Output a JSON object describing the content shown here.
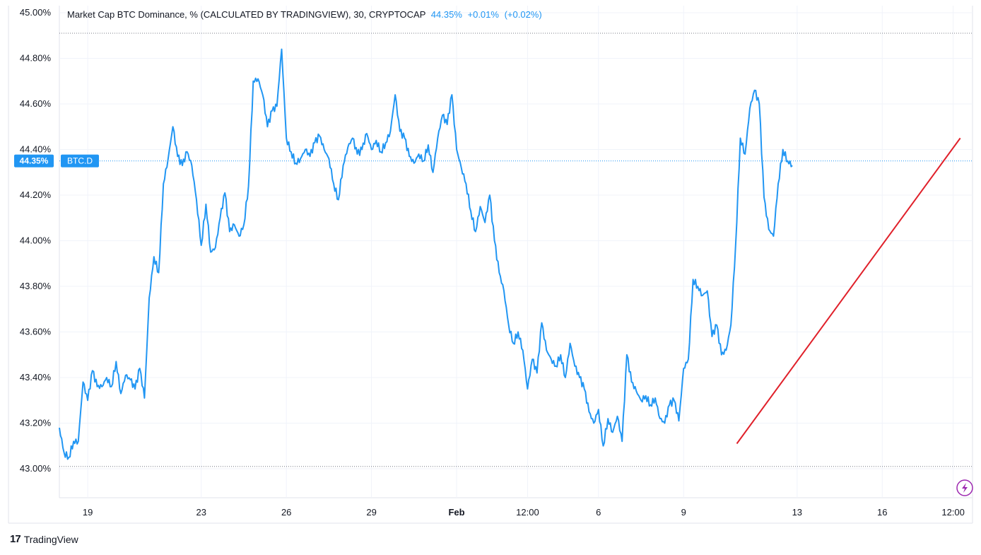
{
  "legend": {
    "title": "Market Cap BTC Dominance, % (CALCULATED BY TRADINGVIEW), 30, CRYPTOCAP",
    "last_value": "44.35%",
    "change_abs": "+0.01%",
    "change_pct": "(+0.02%)"
  },
  "price_tag": {
    "value": "44.35%",
    "symbol": "BTC.D"
  },
  "footer": {
    "brand": "TradingView",
    "logo_glyph": "17"
  },
  "icons": {
    "lightning": "lightning-icon"
  },
  "colors": {
    "series": "#2196f3",
    "trendline": "#e0202a",
    "grid": "#f0f3fa",
    "accent": "#9c27b0"
  },
  "chart_data": {
    "type": "line",
    "title": "Market Cap BTC Dominance, % (CALCULATED BY TRADINGVIEW), 30, CRYPTOCAP",
    "xlabel": "",
    "ylabel": "",
    "ylim": [
      43.0,
      45.0
    ],
    "y_ticks": [
      "45.00%",
      "44.80%",
      "44.60%",
      "44.40%",
      "44.20%",
      "44.00%",
      "43.80%",
      "43.60%",
      "43.40%",
      "43.20%",
      "43.00%"
    ],
    "x_ticks": [
      {
        "label": "19",
        "x": "Jan 19"
      },
      {
        "label": "23",
        "x": "Jan 23"
      },
      {
        "label": "26",
        "x": "Jan 26"
      },
      {
        "label": "29",
        "x": "Jan 29"
      },
      {
        "label": "Feb",
        "x": "Feb 1",
        "bold": true
      },
      {
        "label": "12:00",
        "x": "Feb 3 12:00"
      },
      {
        "label": "6",
        "x": "Feb 6"
      },
      {
        "label": "9",
        "x": "Feb 9"
      },
      {
        "label": "13",
        "x": "Feb 13"
      },
      {
        "label": "16",
        "x": "Feb 16"
      },
      {
        "label": "12:00",
        "x": "Feb 18 12:00"
      }
    ],
    "reference_lines": [
      44.91,
      43.01
    ],
    "series": [
      {
        "values": [
          [
            "Jan 18 00:00",
            43.18
          ],
          [
            "Jan 18 04:00",
            43.07
          ],
          [
            "Jan 18 08:00",
            43.05
          ],
          [
            "Jan 18 12:00",
            43.12
          ],
          [
            "Jan 18 16:00",
            43.12
          ],
          [
            "Jan 18 20:00",
            43.38
          ],
          [
            "Jan 19 00:00",
            43.3
          ],
          [
            "Jan 19 04:00",
            43.43
          ],
          [
            "Jan 19 08:00",
            43.36
          ],
          [
            "Jan 19 12:00",
            43.36
          ],
          [
            "Jan 19 16:00",
            43.4
          ],
          [
            "Jan 19 20:00",
            43.36
          ],
          [
            "Jan 20 00:00",
            43.47
          ],
          [
            "Jan 20 04:00",
            43.33
          ],
          [
            "Jan 20 08:00",
            43.41
          ],
          [
            "Jan 20 12:00",
            43.39
          ],
          [
            "Jan 20 16:00",
            43.35
          ],
          [
            "Jan 20 20:00",
            43.44
          ],
          [
            "Jan 21 00:00",
            43.31
          ],
          [
            "Jan 21 04:00",
            43.75
          ],
          [
            "Jan 21 08:00",
            43.93
          ],
          [
            "Jan 21 12:00",
            43.86
          ],
          [
            "Jan 21 16:00",
            44.25
          ],
          [
            "Jan 21 20:00",
            44.36
          ],
          [
            "Jan 22 00:00",
            44.5
          ],
          [
            "Jan 22 04:00",
            44.37
          ],
          [
            "Jan 22 08:00",
            44.33
          ],
          [
            "Jan 22 12:00",
            44.39
          ],
          [
            "Jan 22 16:00",
            44.33
          ],
          [
            "Jan 22 20:00",
            44.18
          ],
          [
            "Jan 23 00:00",
            43.98
          ],
          [
            "Jan 23 04:00",
            44.16
          ],
          [
            "Jan 23 08:00",
            43.95
          ],
          [
            "Jan 23 12:00",
            43.97
          ],
          [
            "Jan 23 16:00",
            44.1
          ],
          [
            "Jan 23 20:00",
            44.21
          ],
          [
            "Jan 24 00:00",
            44.04
          ],
          [
            "Jan 24 04:00",
            44.07
          ],
          [
            "Jan 24 08:00",
            44.02
          ],
          [
            "Jan 24 12:00",
            44.07
          ],
          [
            "Jan 24 16:00",
            44.24
          ],
          [
            "Jan 24 20:00",
            44.7
          ],
          [
            "Jan 25 00:00",
            44.71
          ],
          [
            "Jan 25 04:00",
            44.64
          ],
          [
            "Jan 25 08:00",
            44.5
          ],
          [
            "Jan 25 12:00",
            44.57
          ],
          [
            "Jan 25 16:00",
            44.59
          ],
          [
            "Jan 25 20:00",
            44.84
          ],
          [
            "Jan 26 00:00",
            44.45
          ],
          [
            "Jan 26 04:00",
            44.39
          ],
          [
            "Jan 26 08:00",
            44.34
          ],
          [
            "Jan 26 12:00",
            44.36
          ],
          [
            "Jan 26 16:00",
            44.4
          ],
          [
            "Jan 26 20:00",
            44.37
          ],
          [
            "Jan 27 00:00",
            44.43
          ],
          [
            "Jan 27 04:00",
            44.46
          ],
          [
            "Jan 27 08:00",
            44.4
          ],
          [
            "Jan 27 12:00",
            44.36
          ],
          [
            "Jan 27 16:00",
            44.25
          ],
          [
            "Jan 27 20:00",
            44.18
          ],
          [
            "Jan 28 00:00",
            44.33
          ],
          [
            "Jan 28 04:00",
            44.41
          ],
          [
            "Jan 28 08:00",
            44.45
          ],
          [
            "Jan 28 12:00",
            44.38
          ],
          [
            "Jan 28 16:00",
            44.4
          ],
          [
            "Jan 28 20:00",
            44.47
          ],
          [
            "Jan 29 00:00",
            44.4
          ],
          [
            "Jan 29 04:00",
            44.44
          ],
          [
            "Jan 29 08:00",
            44.39
          ],
          [
            "Jan 29 12:00",
            44.43
          ],
          [
            "Jan 29 16:00",
            44.48
          ],
          [
            "Jan 29 20:00",
            44.64
          ],
          [
            "Jan 30 00:00",
            44.48
          ],
          [
            "Jan 30 04:00",
            44.45
          ],
          [
            "Jan 30 08:00",
            44.37
          ],
          [
            "Jan 30 12:00",
            44.34
          ],
          [
            "Jan 30 16:00",
            44.38
          ],
          [
            "Jan 30 20:00",
            44.35
          ],
          [
            "Jan 31 00:00",
            44.42
          ],
          [
            "Jan 31 04:00",
            44.3
          ],
          [
            "Jan 31 08:00",
            44.45
          ],
          [
            "Jan 31 12:00",
            44.55
          ],
          [
            "Jan 31 16:00",
            44.51
          ],
          [
            "Jan 31 20:00",
            44.64
          ],
          [
            "Feb 1 00:00",
            44.4
          ],
          [
            "Feb 1 04:00",
            44.32
          ],
          [
            "Feb 1 08:00",
            44.25
          ],
          [
            "Feb 1 12:00",
            44.13
          ],
          [
            "Feb 1 16:00",
            44.04
          ],
          [
            "Feb 1 20:00",
            44.15
          ],
          [
            "Feb 2 00:00",
            44.08
          ],
          [
            "Feb 2 04:00",
            44.2
          ],
          [
            "Feb 2 08:00",
            44.0
          ],
          [
            "Feb 2 12:00",
            43.86
          ],
          [
            "Feb 2 16:00",
            43.78
          ],
          [
            "Feb 2 20:00",
            43.63
          ],
          [
            "Feb 3 00:00",
            43.55
          ],
          [
            "Feb 3 04:00",
            43.6
          ],
          [
            "Feb 3 08:00",
            43.52
          ],
          [
            "Feb 3 12:00",
            43.35
          ],
          [
            "Feb 3 16:00",
            43.48
          ],
          [
            "Feb 3 20:00",
            43.42
          ],
          [
            "Feb 4 00:00",
            43.64
          ],
          [
            "Feb 4 04:00",
            43.52
          ],
          [
            "Feb 4 08:00",
            43.48
          ],
          [
            "Feb 4 12:00",
            43.45
          ],
          [
            "Feb 4 16:00",
            43.5
          ],
          [
            "Feb 4 20:00",
            43.4
          ],
          [
            "Feb 5 00:00",
            43.55
          ],
          [
            "Feb 5 04:00",
            43.45
          ],
          [
            "Feb 5 08:00",
            43.4
          ],
          [
            "Feb 5 12:00",
            43.35
          ],
          [
            "Feb 5 16:00",
            43.25
          ],
          [
            "Feb 5 20:00",
            43.2
          ],
          [
            "Feb 6 00:00",
            43.26
          ],
          [
            "Feb 6 04:00",
            43.1
          ],
          [
            "Feb 6 08:00",
            43.22
          ],
          [
            "Feb 6 12:00",
            43.16
          ],
          [
            "Feb 6 16:00",
            43.23
          ],
          [
            "Feb 6 20:00",
            43.12
          ],
          [
            "Feb 7 00:00",
            43.5
          ],
          [
            "Feb 7 04:00",
            43.38
          ],
          [
            "Feb 7 08:00",
            43.34
          ],
          [
            "Feb 7 12:00",
            43.3
          ],
          [
            "Feb 7 16:00",
            43.32
          ],
          [
            "Feb 7 20:00",
            43.28
          ],
          [
            "Feb 8 00:00",
            43.31
          ],
          [
            "Feb 8 04:00",
            43.22
          ],
          [
            "Feb 8 08:00",
            43.2
          ],
          [
            "Feb 8 12:00",
            43.28
          ],
          [
            "Feb 8 16:00",
            43.3
          ],
          [
            "Feb 8 20:00",
            43.21
          ],
          [
            "Feb 9 00:00",
            43.44
          ],
          [
            "Feb 9 04:00",
            43.48
          ],
          [
            "Feb 9 08:00",
            43.83
          ],
          [
            "Feb 9 12:00",
            43.8
          ],
          [
            "Feb 9 16:00",
            43.76
          ],
          [
            "Feb 9 20:00",
            43.78
          ],
          [
            "Feb 10 00:00",
            43.58
          ],
          [
            "Feb 10 04:00",
            43.63
          ],
          [
            "Feb 10 08:00",
            43.5
          ],
          [
            "Feb 10 12:00",
            43.52
          ],
          [
            "Feb 10 16:00",
            43.63
          ],
          [
            "Feb 10 20:00",
            43.98
          ],
          [
            "Feb 11 00:00",
            44.45
          ],
          [
            "Feb 11 04:00",
            44.38
          ],
          [
            "Feb 11 08:00",
            44.58
          ],
          [
            "Feb 11 12:00",
            44.66
          ],
          [
            "Feb 11 16:00",
            44.6
          ],
          [
            "Feb 11 20:00",
            44.19
          ],
          [
            "Feb 12 00:00",
            44.05
          ],
          [
            "Feb 12 04:00",
            44.02
          ],
          [
            "Feb 12 08:00",
            44.25
          ],
          [
            "Feb 12 12:00",
            44.4
          ],
          [
            "Feb 12 16:00",
            44.35
          ],
          [
            "Feb 12 20:00",
            44.33
          ]
        ]
      }
    ],
    "trendline": {
      "from": [
        "Feb 10 21:00",
        43.11
      ],
      "to": [
        "Feb 18 18:00",
        44.45
      ]
    }
  }
}
